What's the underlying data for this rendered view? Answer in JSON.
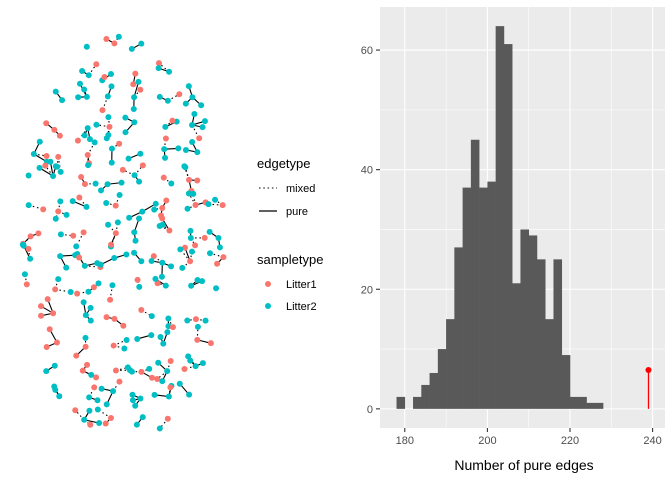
{
  "figure": {
    "legend": {
      "edgetype": {
        "title": "edgetype",
        "items": [
          {
            "label": "mixed",
            "linestyle": "dotted"
          },
          {
            "label": "pure",
            "linestyle": "solid"
          }
        ]
      },
      "sampletype": {
        "title": "sampletype",
        "items": [
          {
            "label": "Litter1",
            "color": "#F8766D"
          },
          {
            "label": "Litter2",
            "color": "#00BFC4"
          }
        ]
      }
    }
  },
  "chart_data": [
    {
      "type": "network",
      "layout": "ellipse of small trees",
      "node_colors": {
        "Litter1": "#F8766D",
        "Litter2": "#00BFC4"
      },
      "edge_styles": {
        "mixed": "dotted",
        "pure": "solid"
      }
    },
    {
      "type": "bar",
      "subtype": "histogram",
      "title": "",
      "xlabel": "Number of pure edges",
      "ylabel": "",
      "xlim": [
        174,
        243
      ],
      "ylim": [
        -3.2,
        67.2
      ],
      "xticks": [
        180,
        200,
        220,
        240
      ],
      "yticks": [
        0,
        20,
        40,
        60
      ],
      "grid": true,
      "bar_color": "#595959",
      "bins": [
        {
          "x0": 178,
          "x1": 180,
          "count": 2
        },
        {
          "x0": 180,
          "x1": 182,
          "count": 0
        },
        {
          "x0": 182,
          "x1": 184,
          "count": 2
        },
        {
          "x0": 184,
          "x1": 186,
          "count": 4
        },
        {
          "x0": 186,
          "x1": 188,
          "count": 6
        },
        {
          "x0": 188,
          "x1": 190,
          "count": 10
        },
        {
          "x0": 190,
          "x1": 192,
          "count": 15
        },
        {
          "x0": 192,
          "x1": 194,
          "count": 27
        },
        {
          "x0": 194,
          "x1": 196,
          "count": 37
        },
        {
          "x0": 196,
          "x1": 198,
          "count": 45
        },
        {
          "x0": 198,
          "x1": 200,
          "count": 37
        },
        {
          "x0": 200,
          "x1": 202,
          "count": 38
        },
        {
          "x0": 202,
          "x1": 204,
          "count": 64
        },
        {
          "x0": 204,
          "x1": 206,
          "count": 61
        },
        {
          "x0": 206,
          "x1": 208,
          "count": 21
        },
        {
          "x0": 208,
          "x1": 210,
          "count": 30
        },
        {
          "x0": 210,
          "x1": 212,
          "count": 29
        },
        {
          "x0": 212,
          "x1": 214,
          "count": 25
        },
        {
          "x0": 214,
          "x1": 216,
          "count": 15
        },
        {
          "x0": 216,
          "x1": 218,
          "count": 25
        },
        {
          "x0": 218,
          "x1": 220,
          "count": 9
        },
        {
          "x0": 220,
          "x1": 222,
          "count": 2
        },
        {
          "x0": 222,
          "x1": 224,
          "count": 2
        },
        {
          "x0": 224,
          "x1": 226,
          "count": 1
        },
        {
          "x0": 226,
          "x1": 228,
          "count": 1
        }
      ],
      "observed": {
        "x": 239,
        "y": 6.5,
        "color": "#FF0000"
      }
    }
  ]
}
